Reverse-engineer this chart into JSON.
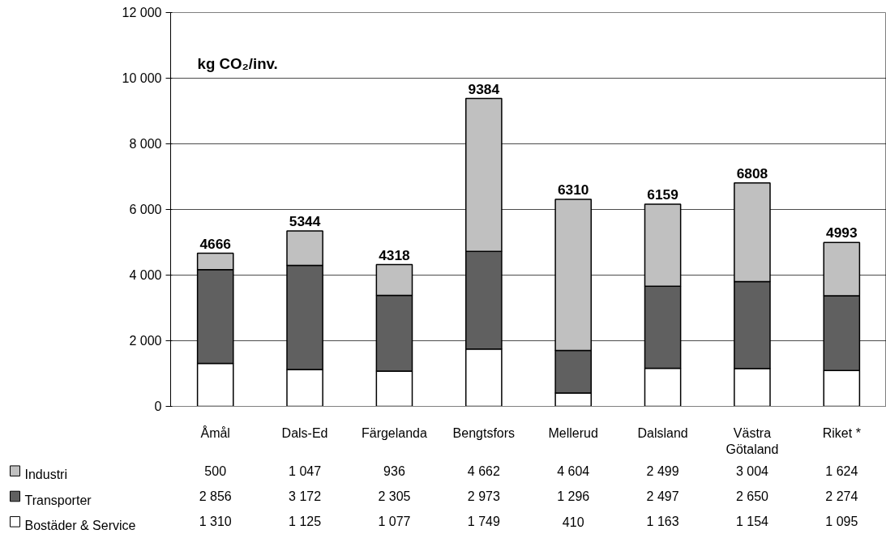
{
  "chart_data": {
    "type": "bar",
    "stacked": true,
    "title": "kg CO₂/inv.",
    "categories": [
      "Åmål",
      "Dals-Ed",
      "Färgelanda",
      "Bengtsfors",
      "Mellerud",
      "Dalsland",
      "Västra Götaland",
      "Riket *"
    ],
    "series": [
      {
        "name": "Bostäder & Service",
        "color": "#ffffff",
        "values": [
          1310,
          1125,
          1077,
          1749,
          410,
          1163,
          1154,
          1095
        ],
        "value_labels": [
          "1 310",
          "1 125",
          "1 077",
          "1 749",
          "410",
          "1 163",
          "1 154",
          "1 095"
        ]
      },
      {
        "name": "Transporter",
        "color": "#606060",
        "values": [
          2856,
          3172,
          2305,
          2973,
          1296,
          2497,
          2650,
          2274
        ],
        "value_labels": [
          "2 856",
          "3 172",
          "2 305",
          "2 973",
          "1 296",
          "2 497",
          "2 650",
          "2 274"
        ]
      },
      {
        "name": "Industri",
        "color": "#c0c0c0",
        "values": [
          500,
          1047,
          936,
          4662,
          4604,
          2499,
          3004,
          1624
        ],
        "value_labels": [
          "500",
          "1 047",
          "936",
          "4 662",
          "4 604",
          "2 499",
          "3 004",
          "1 624"
        ]
      }
    ],
    "totals": [
      "4666",
      "5344",
      "4318",
      "9384",
      "6310",
      "6159",
      "6808",
      "4993"
    ],
    "ylim": [
      0,
      12000
    ],
    "yticks": [
      0,
      {
        "value": 2000,
        "label": "2 000"
      },
      {
        "value": 4000,
        "label": "4 000"
      },
      {
        "value": 6000,
        "label": "6 000"
      },
      {
        "value": 8000,
        "label": "8 000"
      },
      {
        "value": 10000,
        "label": "10 000"
      },
      {
        "value": 12000,
        "label": "12 000"
      }
    ],
    "grid": "y",
    "legend": "bottom left"
  }
}
